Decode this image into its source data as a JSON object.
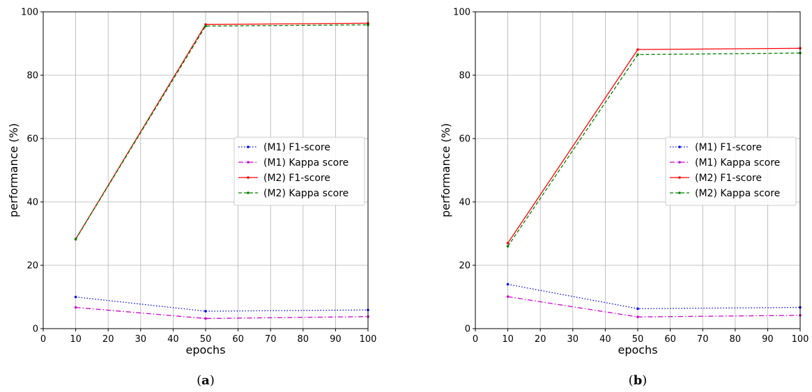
{
  "chart_data": [
    {
      "type": "line",
      "panel": "a",
      "caption_open": "(",
      "caption_letter": "a",
      "caption_close": ")",
      "xlabel": "epochs",
      "ylabel": "performance (%)",
      "xlim": [
        0,
        100
      ],
      "ylim": [
        0,
        100
      ],
      "xticks": [
        0,
        10,
        20,
        30,
        40,
        50,
        60,
        70,
        80,
        90,
        100
      ],
      "yticks": [
        0,
        20,
        40,
        60,
        80,
        100
      ],
      "grid": true,
      "legend_position": "center-right",
      "x": [
        10,
        50,
        100
      ],
      "series": [
        {
          "name": "(M1) F1-score",
          "values": [
            10.0,
            5.5,
            5.9
          ],
          "color": "#0000ff",
          "dash": "1.5,2.5"
        },
        {
          "name": "(M1) Kappa score",
          "values": [
            6.7,
            3.2,
            3.8
          ],
          "color": "#cc00cc",
          "dash": "7,3,1.5,3"
        },
        {
          "name": "(M2) F1-score",
          "values": [
            28.3,
            96.0,
            96.4
          ],
          "color": "#ff0000",
          "dash": ""
        },
        {
          "name": "(M2) Kappa score",
          "values": [
            28.2,
            95.5,
            95.9
          ],
          "color": "#008000",
          "dash": "5,3"
        }
      ]
    },
    {
      "type": "line",
      "panel": "b",
      "caption_open": "(",
      "caption_letter": "b",
      "caption_close": ")",
      "xlabel": "epochs",
      "ylabel": "performance (%)",
      "xlim": [
        0,
        100
      ],
      "ylim": [
        0,
        100
      ],
      "xticks": [
        0,
        10,
        20,
        30,
        40,
        50,
        60,
        70,
        80,
        90,
        100
      ],
      "yticks": [
        0,
        20,
        40,
        60,
        80,
        100
      ],
      "grid": true,
      "legend_position": "center-right",
      "x": [
        10,
        50,
        100
      ],
      "series": [
        {
          "name": "(M1) F1-score",
          "values": [
            14.0,
            6.3,
            6.7
          ],
          "color": "#0000ff",
          "dash": "1.5,2.5"
        },
        {
          "name": "(M1) Kappa score",
          "values": [
            10.1,
            3.7,
            4.2
          ],
          "color": "#cc00cc",
          "dash": "7,3,1.5,3"
        },
        {
          "name": "(M2) F1-score",
          "values": [
            27.0,
            88.1,
            88.5
          ],
          "color": "#ff0000",
          "dash": ""
        },
        {
          "name": "(M2) Kappa score",
          "values": [
            26.0,
            86.5,
            87.0
          ],
          "color": "#008000",
          "dash": "5,3"
        }
      ]
    }
  ]
}
